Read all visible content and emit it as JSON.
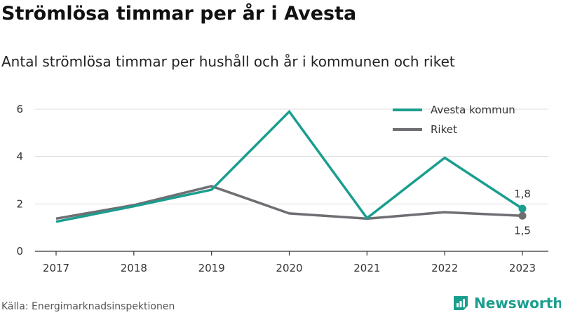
{
  "header": {
    "title": "Strömlösa timmar per år i Avesta",
    "subtitle": "Antal strömlösa timmar per hushåll och år i kommunen och riket"
  },
  "footer": {
    "source": "Källa: Energimarknadsinspektionen",
    "brand": "Newsworthy",
    "brand_icon": "newsworthy-logo-icon"
  },
  "colors": {
    "avesta": "#1a9e8e",
    "riket": "#6e6e73",
    "grid": "#dddddd",
    "brand": "#1a9e8e"
  },
  "chart_data": {
    "type": "line",
    "x": [
      "2017",
      "2018",
      "2019",
      "2020",
      "2021",
      "2022",
      "2023"
    ],
    "series": [
      {
        "name": "Avesta kommun",
        "values": [
          1.25,
          1.9,
          2.6,
          5.9,
          1.4,
          3.95,
          1.8
        ]
      },
      {
        "name": "Riket",
        "values": [
          1.38,
          1.95,
          2.75,
          1.6,
          1.38,
          1.65,
          1.5
        ]
      }
    ],
    "end_labels": [
      "1,8",
      "1,5"
    ],
    "yticks": [
      "0",
      "2",
      "4",
      "6"
    ],
    "ylim": [
      0,
      6
    ],
    "grid": true,
    "legend": "top-right"
  }
}
